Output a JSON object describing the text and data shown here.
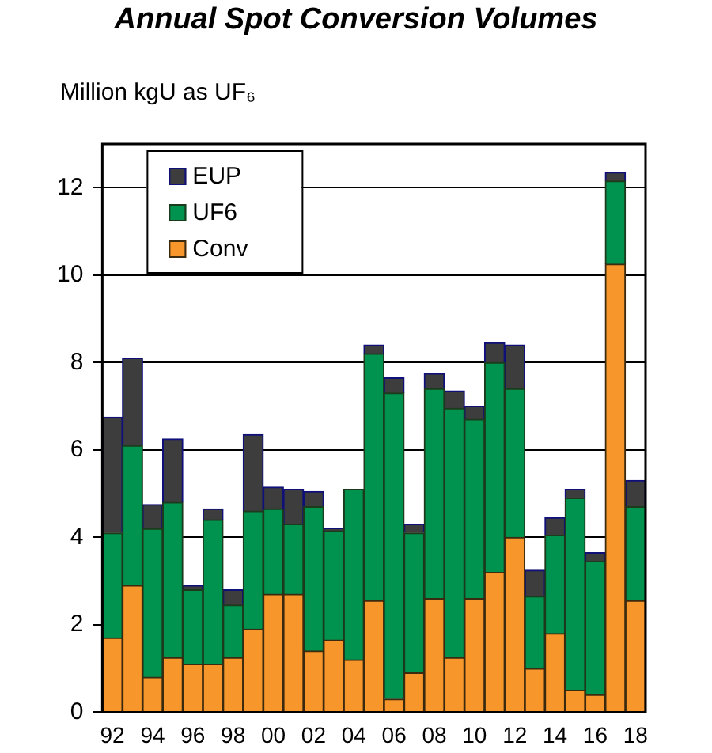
{
  "chart_data": {
    "type": "bar",
    "title": "Annual Spot Conversion Volumes",
    "ylabel": "Million kgU as UF₆",
    "categories": [
      "92",
      null,
      "94",
      null,
      "96",
      null,
      "98",
      null,
      "00",
      null,
      "02",
      null,
      "04",
      null,
      "06",
      null,
      "08",
      null,
      "10",
      null,
      "12",
      null,
      "14",
      null,
      "16",
      null,
      "18"
    ],
    "stacked": true,
    "ylim": [
      0,
      13
    ],
    "yticks": [
      0,
      2,
      4,
      6,
      8,
      10,
      12
    ],
    "grid": "y",
    "legend": "top left",
    "series": [
      {
        "name": "Conv",
        "color": "#f7962a",
        "values": [
          1.7,
          2.9,
          0.8,
          1.25,
          1.1,
          1.1,
          1.25,
          1.9,
          2.7,
          2.7,
          1.4,
          1.65,
          1.2,
          2.55,
          0.3,
          0.9,
          2.6,
          1.25,
          2.6,
          3.2,
          4.0,
          1.0,
          1.8,
          0.5,
          0.4,
          10.25,
          2.55
        ]
      },
      {
        "name": "UF6",
        "color": "#00934f",
        "values": [
          2.4,
          3.2,
          3.4,
          3.55,
          1.7,
          3.3,
          1.2,
          2.7,
          1.95,
          1.6,
          3.3,
          2.5,
          3.9,
          5.65,
          7.0,
          3.2,
          4.8,
          5.7,
          4.1,
          4.8,
          3.4,
          1.65,
          2.25,
          4.4,
          3.05,
          1.9,
          2.15
        ]
      },
      {
        "name": "EUP",
        "color": "#3d3d3d",
        "values": [
          2.65,
          2.0,
          0.55,
          1.45,
          0.1,
          0.25,
          0.35,
          1.75,
          0.5,
          0.8,
          0.35,
          0.05,
          0,
          0.2,
          0.35,
          0.2,
          0.35,
          0.4,
          0.3,
          0.45,
          1.0,
          0.6,
          0.4,
          0.2,
          0.2,
          0.2,
          0.6
        ]
      }
    ]
  }
}
